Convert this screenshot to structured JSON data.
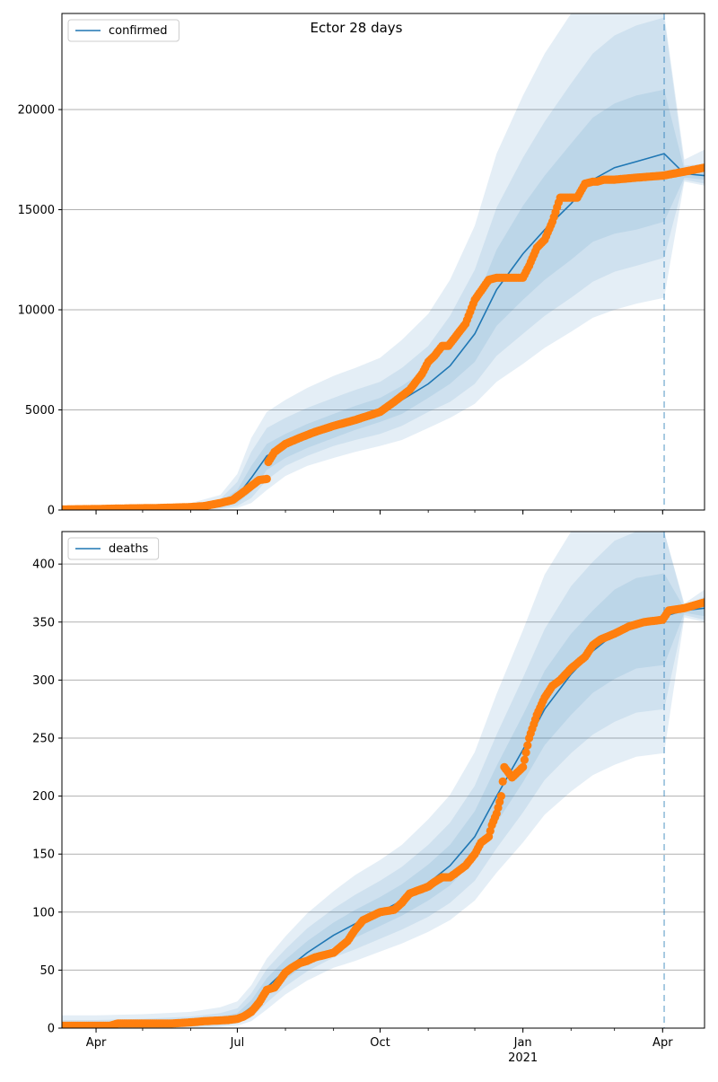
{
  "colors": {
    "band": "#1f77b4",
    "model_line": "#1f77b4",
    "observed": "#ff7f0e",
    "forecast_line": "#1f77b4",
    "grid": "#b0b0b0"
  },
  "chart_data": [
    {
      "type": "line",
      "title": "Ector 28 days",
      "legend": {
        "label": "confirmed",
        "placement": "top-left"
      },
      "grid": "y",
      "x_range": [
        "2020-03-10",
        "2021-04-28"
      ],
      "ylim": [
        0,
        24800
      ],
      "yticks": [
        {
          "value": 0,
          "label": "0"
        },
        {
          "value": 5000,
          "label": "5000"
        },
        {
          "value": 10000,
          "label": "10000"
        },
        {
          "value": 15000,
          "label": "15000"
        },
        {
          "value": 20000,
          "label": "20000"
        }
      ],
      "xticks": [
        {
          "date": "2020-04-01",
          "label": "Apr",
          "sublabel": ""
        },
        {
          "date": "2020-07-01",
          "label": "Jul",
          "sublabel": ""
        },
        {
          "date": "2020-10-01",
          "label": "Oct",
          "sublabel": ""
        },
        {
          "date": "2021-01-01",
          "label": "Jan",
          "sublabel": "2021"
        },
        {
          "date": "2021-04-01",
          "label": "Apr",
          "sublabel": ""
        }
      ],
      "forecast_date": "2021-04-02",
      "model": {
        "dates": [
          "2020-03-10",
          "2020-04-01",
          "2020-05-01",
          "2020-06-01",
          "2020-06-20",
          "2020-07-01",
          "2020-07-10",
          "2020-07-20",
          "2020-08-01",
          "2020-08-15",
          "2020-09-01",
          "2020-09-15",
          "2020-10-01",
          "2020-10-15",
          "2020-11-01",
          "2020-11-15",
          "2020-12-01",
          "2020-12-15",
          "2021-01-01",
          "2021-01-15",
          "2021-02-01",
          "2021-02-15",
          "2021-03-01",
          "2021-03-15",
          "2021-04-02",
          "2021-04-15",
          "2021-04-28"
        ],
        "median": [
          0,
          10,
          50,
          120,
          300,
          700,
          1600,
          2700,
          3200,
          3700,
          4200,
          4600,
          5000,
          5500,
          6300,
          7200,
          8800,
          11000,
          12800,
          14000,
          15300,
          16500,
          17100,
          17400,
          17800,
          16800,
          16700
        ],
        "bands": [
          {
            "lower": [
              0,
              0,
              10,
              40,
              150,
              350,
              900,
              2000,
              2600,
              3100,
              3600,
              4000,
              4400,
              4800,
              5600,
              6300,
              7400,
              9200,
              10500,
              11500,
              12500,
              13400,
              13800,
              14000,
              14400,
              16600,
              16500
            ],
            "upper": [
              30,
              40,
              80,
              180,
              420,
              1000,
              2200,
              3300,
              3800,
              4300,
              4800,
              5200,
              5600,
              6200,
              7100,
              8300,
              10300,
              13000,
              15200,
              16700,
              18300,
              19600,
              20300,
              20700,
              21000,
              17000,
              17000
            ]
          },
          {
            "lower": [
              0,
              0,
              5,
              20,
              80,
              200,
              600,
              1500,
              2200,
              2700,
              3200,
              3500,
              3800,
              4200,
              4900,
              5400,
              6300,
              7700,
              8800,
              9700,
              10600,
              11400,
              11900,
              12200,
              12600,
              16500,
              16300
            ],
            "upper": [
              60,
              80,
              120,
              250,
              550,
              1400,
              2900,
              4100,
              4600,
              5100,
              5600,
              6000,
              6400,
              7100,
              8200,
              9700,
              12000,
              15100,
              17600,
              19400,
              21300,
              22800,
              23700,
              24200,
              24600,
              17200,
              17300
            ]
          },
          {
            "lower": [
              0,
              0,
              0,
              10,
              40,
              100,
              350,
              1000,
              1700,
              2200,
              2600,
              2900,
              3200,
              3500,
              4100,
              4600,
              5300,
              6400,
              7300,
              8100,
              8900,
              9600,
              10000,
              10300,
              10600,
              16400,
              16200
            ],
            "upper": [
              100,
              130,
              180,
              350,
              750,
              1800,
              3600,
              4900,
              5500,
              6100,
              6700,
              7100,
              7600,
              8500,
              9800,
              11500,
              14200,
              17800,
              20700,
              22800,
              25000,
              26800,
              27900,
              28500,
              29000,
              17500,
              18000
            ]
          }
        ]
      },
      "observed": {
        "dates": [
          "2020-03-10",
          "2020-04-01",
          "2020-04-20",
          "2020-05-10",
          "2020-06-01",
          "2020-06-10",
          "2020-06-20",
          "2020-06-28",
          "2020-07-05",
          "2020-07-10",
          "2020-07-15",
          "2020-07-20",
          "2020-07-21",
          "2020-07-25",
          "2020-08-01",
          "2020-08-10",
          "2020-08-20",
          "2020-09-01",
          "2020-09-15",
          "2020-10-01",
          "2020-10-10",
          "2020-10-20",
          "2020-10-28",
          "2020-11-01",
          "2020-11-05",
          "2020-11-10",
          "2020-11-13",
          "2020-11-14",
          "2020-11-20",
          "2020-11-25",
          "2020-12-01",
          "2020-12-10",
          "2020-12-15",
          "2020-12-20",
          "2020-12-25",
          "2021-01-01",
          "2021-01-05",
          "2021-01-10",
          "2021-01-15",
          "2021-01-20",
          "2021-01-25",
          "2021-01-30",
          "2021-02-05",
          "2021-02-10",
          "2021-02-15",
          "2021-02-17",
          "2021-02-18",
          "2021-02-22",
          "2021-02-24",
          "2021-03-01",
          "2021-03-15",
          "2021-04-01",
          "2021-04-15",
          "2021-04-28"
        ],
        "values": [
          30,
          50,
          80,
          100,
          150,
          200,
          350,
          500,
          900,
          1200,
          1500,
          1550,
          2400,
          2900,
          3300,
          3600,
          3900,
          4200,
          4500,
          4900,
          5400,
          6000,
          6800,
          7400,
          7700,
          8200,
          8200,
          8200,
          8800,
          9300,
          10500,
          11500,
          11600,
          11600,
          11600,
          11600,
          12200,
          13100,
          13500,
          14400,
          15600,
          15600,
          15600,
          16300,
          16400,
          16400,
          16400,
          16500,
          16500,
          16500,
          16600,
          16700,
          16900,
          17100
        ]
      }
    },
    {
      "type": "line",
      "title": "",
      "legend": {
        "label": "deaths",
        "placement": "top-left"
      },
      "grid": "y",
      "x_range": [
        "2020-03-10",
        "2021-04-28"
      ],
      "ylim": [
        0,
        428
      ],
      "yticks": [
        {
          "value": 0,
          "label": "0"
        },
        {
          "value": 50,
          "label": "50"
        },
        {
          "value": 100,
          "label": "100"
        },
        {
          "value": 150,
          "label": "150"
        },
        {
          "value": 200,
          "label": "200"
        },
        {
          "value": 250,
          "label": "250"
        },
        {
          "value": 300,
          "label": "300"
        },
        {
          "value": 350,
          "label": "350"
        },
        {
          "value": 400,
          "label": "400"
        }
      ],
      "xticks": [
        {
          "date": "2020-04-01",
          "label": "Apr",
          "sublabel": ""
        },
        {
          "date": "2020-07-01",
          "label": "Jul",
          "sublabel": ""
        },
        {
          "date": "2020-10-01",
          "label": "Oct",
          "sublabel": ""
        },
        {
          "date": "2021-01-01",
          "label": "Jan",
          "sublabel": "2021"
        },
        {
          "date": "2021-04-01",
          "label": "Apr",
          "sublabel": ""
        }
      ],
      "forecast_date": "2021-04-02",
      "model": {
        "dates": [
          "2020-03-10",
          "2020-04-01",
          "2020-05-01",
          "2020-06-01",
          "2020-06-20",
          "2020-07-01",
          "2020-07-10",
          "2020-07-20",
          "2020-08-01",
          "2020-08-15",
          "2020-09-01",
          "2020-09-15",
          "2020-10-01",
          "2020-10-15",
          "2020-11-01",
          "2020-11-15",
          "2020-12-01",
          "2020-12-15",
          "2021-01-01",
          "2021-01-15",
          "2021-02-01",
          "2021-02-15",
          "2021-03-01",
          "2021-03-15",
          "2021-04-02",
          "2021-04-15",
          "2021-04-28"
        ],
        "median": [
          2,
          2,
          3,
          4,
          6,
          9,
          18,
          35,
          50,
          65,
          80,
          90,
          100,
          110,
          125,
          140,
          165,
          200,
          240,
          275,
          305,
          325,
          340,
          350,
          355,
          360,
          362
        ],
        "bands": [
          {
            "lower": [
              0,
              0,
              1,
              2,
              4,
              6,
              13,
              28,
              42,
              56,
              70,
              78,
              88,
              97,
              110,
              123,
              145,
              177,
              212,
              244,
              270,
              289,
              301,
              310,
              313,
              358,
              355
            ],
            "upper": [
              4,
              4,
              5,
              7,
              10,
              13,
              24,
              43,
              59,
              75,
              91,
              102,
              113,
              124,
              141,
              158,
              187,
              226,
              270,
              308,
              340,
              360,
              378,
              388,
              392,
              362,
              368
            ]
          },
          {
            "lower": [
              0,
              0,
              0,
              1,
              2,
              4,
              9,
              22,
              36,
              49,
              61,
              68,
              77,
              85,
              96,
              108,
              127,
              155,
              186,
              214,
              237,
              253,
              264,
              272,
              275,
              356,
              352
            ],
            "upper": [
              7,
              7,
              8,
              10,
              13,
              17,
              30,
              51,
              68,
              86,
              103,
              115,
              127,
              139,
              158,
              177,
              209,
              253,
              302,
              344,
              381,
              402,
              420,
              432,
              438,
              364,
              372
            ]
          },
          {
            "lower": [
              0,
              0,
              0,
              0,
              1,
              2,
              6,
              16,
              29,
              41,
              52,
              58,
              66,
              73,
              83,
              93,
              110,
              134,
              160,
              184,
              204,
              218,
              227,
              234,
              237,
              354,
              350
            ],
            "upper": [
              11,
              11,
              12,
              14,
              18,
              23,
              37,
              60,
              79,
              99,
              118,
              132,
              145,
              158,
              180,
              201,
              238,
              288,
              343,
              391,
              432,
              455,
              476,
              490,
              497,
              366,
              378
            ]
          }
        ]
      },
      "observed": {
        "dates": [
          "2020-03-10",
          "2020-04-10",
          "2020-04-15",
          "2020-05-20",
          "2020-06-01",
          "2020-06-10",
          "2020-06-25",
          "2020-07-01",
          "2020-07-05",
          "2020-07-10",
          "2020-07-15",
          "2020-07-20",
          "2020-07-25",
          "2020-08-01",
          "2020-08-05",
          "2020-08-10",
          "2020-08-15",
          "2020-08-20",
          "2020-09-01",
          "2020-09-10",
          "2020-09-15",
          "2020-09-20",
          "2020-10-01",
          "2020-10-10",
          "2020-10-15",
          "2020-10-20",
          "2020-11-01",
          "2020-11-05",
          "2020-11-10",
          "2020-11-15",
          "2020-11-20",
          "2020-11-25",
          "2020-12-01",
          "2020-12-05",
          "2020-12-10",
          "2020-12-12",
          "2020-12-15",
          "2020-12-18",
          "2020-12-20",
          "2020-12-25",
          "2021-01-01",
          "2021-01-05",
          "2021-01-10",
          "2021-01-15",
          "2021-01-20",
          "2021-01-25",
          "2021-02-01",
          "2021-02-10",
          "2021-02-15",
          "2021-02-20",
          "2021-03-01",
          "2021-03-10",
          "2021-03-20",
          "2021-04-01",
          "2021-04-05",
          "2021-04-15",
          "2021-04-28"
        ],
        "values": [
          2,
          2,
          4,
          4,
          5,
          6,
          7,
          8,
          10,
          14,
          22,
          33,
          35,
          48,
          52,
          56,
          58,
          61,
          65,
          75,
          85,
          93,
          100,
          102,
          108,
          116,
          122,
          126,
          130,
          130,
          135,
          140,
          150,
          160,
          165,
          175,
          185,
          200,
          225,
          216,
          225,
          250,
          270,
          285,
          295,
          300,
          310,
          320,
          330,
          335,
          340,
          346,
          350,
          352,
          360,
          362,
          367
        ]
      }
    }
  ]
}
